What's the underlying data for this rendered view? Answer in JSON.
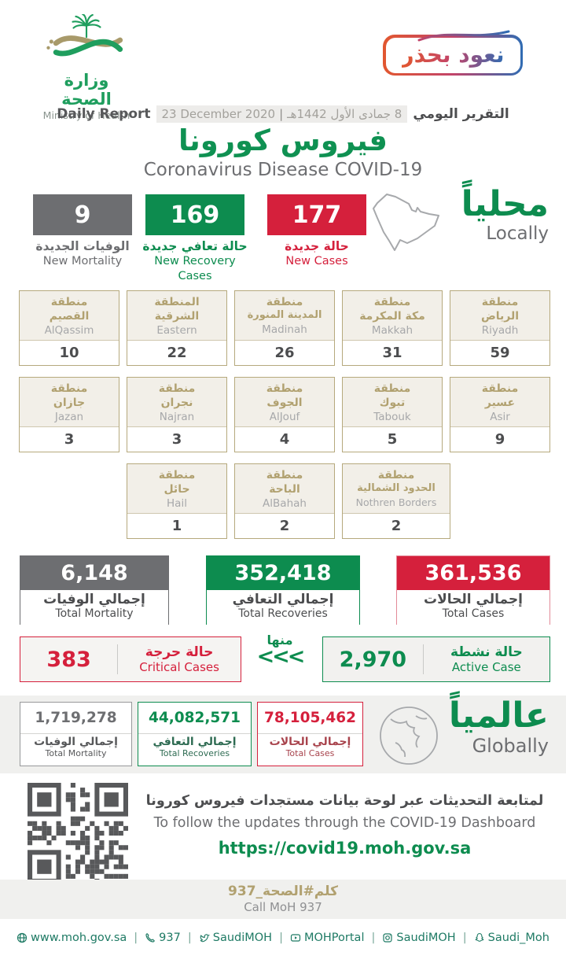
{
  "colors": {
    "green": "#0d8c4f",
    "red": "#d5203c",
    "gray": "#6d6e71",
    "tan": "#b1a170",
    "footer_green": "#1e7a64"
  },
  "header": {
    "logo_ar": "وزارة الصحة",
    "logo_en": "Ministry of Health",
    "badge": "نعود بحذر",
    "report_en": "Daily Report",
    "date_gregorian": "23 December 2020",
    "date_sep": "|",
    "date_hijri": "8 جمادى الأول 1442هـ",
    "report_ar": "التقرير اليومي",
    "title_ar": "فيروس كورونا",
    "title_en": "Coronavirus Disease COVID-19"
  },
  "locally": {
    "label_ar": "محلياً",
    "label_en": "Locally",
    "mortality": {
      "value": "9",
      "ar": "الوفيات الجديدة",
      "en": "New Mortality"
    },
    "recovery": {
      "value": "169",
      "ar": "حالة تعافي جديدة",
      "en": "New Recovery Cases"
    },
    "cases": {
      "value": "177",
      "ar": "حالة جديدة",
      "en": "New Cases"
    }
  },
  "regions": {
    "row1": [
      {
        "ar1": "منطقة",
        "ar2": "القصيم",
        "en": "AlQassim",
        "value": "10"
      },
      {
        "ar1": "المنطقة",
        "ar2": "الشرقية",
        "en": "Eastern",
        "value": "22"
      },
      {
        "ar1": "منطقة",
        "ar2": "المدينة المنورة",
        "en": "Madinah",
        "value": "26"
      },
      {
        "ar1": "منطقة",
        "ar2": "مكة المكرمة",
        "en": "Makkah",
        "value": "31"
      },
      {
        "ar1": "منطقة",
        "ar2": "الرياض",
        "en": "Riyadh",
        "value": "59"
      }
    ],
    "row2": [
      {
        "ar1": "منطقة",
        "ar2": "جازان",
        "en": "Jazan",
        "value": "3"
      },
      {
        "ar1": "منطقة",
        "ar2": "نجران",
        "en": "Najran",
        "value": "3"
      },
      {
        "ar1": "منطقة",
        "ar2": "الجوف",
        "en": "AlJouf",
        "value": "4"
      },
      {
        "ar1": "منطقة",
        "ar2": "تبوك",
        "en": "Tabouk",
        "value": "5"
      },
      {
        "ar1": "منطقة",
        "ar2": "عسير",
        "en": "Asir",
        "value": "9"
      }
    ],
    "row3": [
      {
        "ar1": "منطقة",
        "ar2": "حائل",
        "en": "Hail",
        "value": "1"
      },
      {
        "ar1": "منطقة",
        "ar2": "الباحة",
        "en": "AlBahah",
        "value": "2"
      },
      {
        "ar1": "منطقة",
        "ar2": "الحدود الشمالية",
        "en": "Nothren Borders",
        "value": "2"
      }
    ]
  },
  "totals": {
    "mortality": {
      "value": "6,148",
      "ar": "إجمالي الوفيات",
      "en": "Total Mortality"
    },
    "recoveries": {
      "value": "352,418",
      "ar": "إجمالي التعافي",
      "en": "Total Recoveries"
    },
    "cases": {
      "value": "361,536",
      "ar": "إجمالي الحالات",
      "en": "Total Cases"
    }
  },
  "critical": {
    "value": "383",
    "ar": "حالة حرجة",
    "en": "Critical Cases"
  },
  "minha": {
    "label": "منها",
    "arrows": "<<<"
  },
  "active": {
    "value": "2,970",
    "ar": "حالة نشطة",
    "en": "Active Case"
  },
  "globally": {
    "label_ar": "عالمياً",
    "label_en": "Globally",
    "mortality": {
      "value": "1,719,278",
      "ar": "إجمالي الوفيات",
      "en": "Total Mortality"
    },
    "recoveries": {
      "value": "44,082,571",
      "ar": "إجمالي التعافي",
      "en": "Total Recoveries"
    },
    "cases": {
      "value": "78,105,462",
      "ar": "إجمالي الحالات",
      "en": "Total Cases"
    }
  },
  "dashboard": {
    "ar": "لمتابعة التحديثات عبر لوحة بيانات مستجدات فيروس كورونا",
    "en": "To follow the updates through the COVID-19 Dashboard",
    "url": "https://covid19.moh.gov.sa"
  },
  "call": {
    "ar": "كلم#الصحة_937",
    "en": "Call MoH 937"
  },
  "footer": {
    "website": "www.moh.gov.sa",
    "phone": "937",
    "twitter": "SaudiMOH",
    "youtube": "MOHPortal",
    "instagram": "SaudiMOH",
    "snapchat": "Saudi_Moh",
    "sep": "|"
  }
}
